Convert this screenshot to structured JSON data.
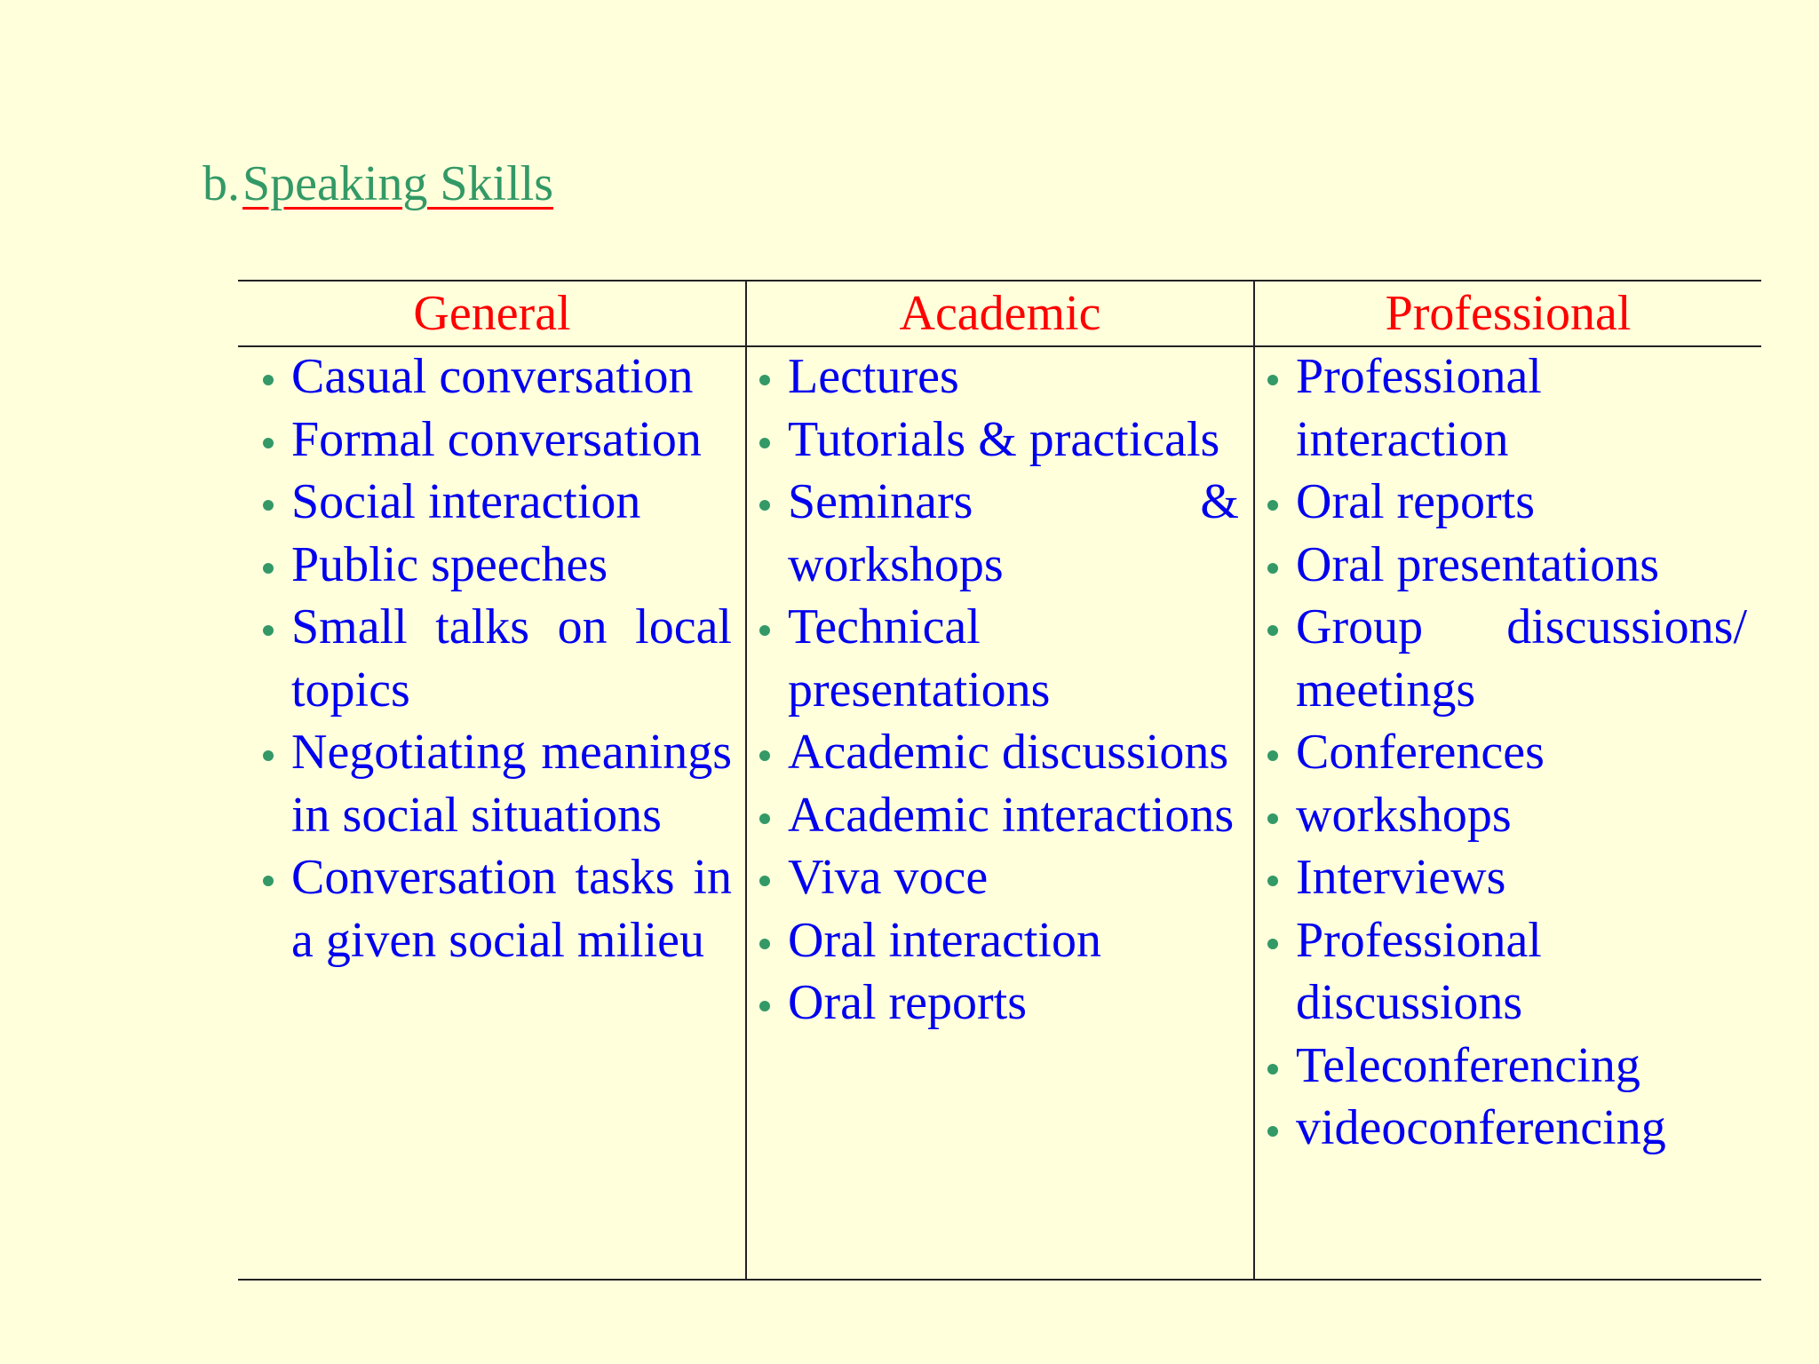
{
  "title": {
    "number": "b.",
    "text": "Speaking Skills"
  },
  "colors": {
    "title": "#339966",
    "underline": "#ff0000",
    "header": "#ff0000",
    "item": "#0000ee",
    "bullet": "#339966",
    "background": "#FFFFDC"
  },
  "columns": [
    {
      "header": "General",
      "items": [
        "Casual conversation",
        "Formal conversation",
        "Social interaction",
        "Public speeches",
        "Small talks on local topics",
        "Negotiating meanings in social situations",
        "Conversation tasks in a given social milieu"
      ]
    },
    {
      "header": "Academic",
      "items": [
        "Lectures",
        "Tutorials & practicals",
        "Seminars & workshops",
        "Technical presentations",
        "Academic discussions",
        "Academic interactions",
        "Viva voce",
        "Oral interaction",
        "Oral reports"
      ]
    },
    {
      "header": "Professional",
      "items": [
        "Professional interaction",
        "Oral reports",
        "Oral presentations",
        "Group discussions/ meetings",
        "Conferences",
        "workshops",
        "Interviews",
        "Professional discussions",
        "Teleconferencing",
        "videoconferencing"
      ]
    }
  ]
}
